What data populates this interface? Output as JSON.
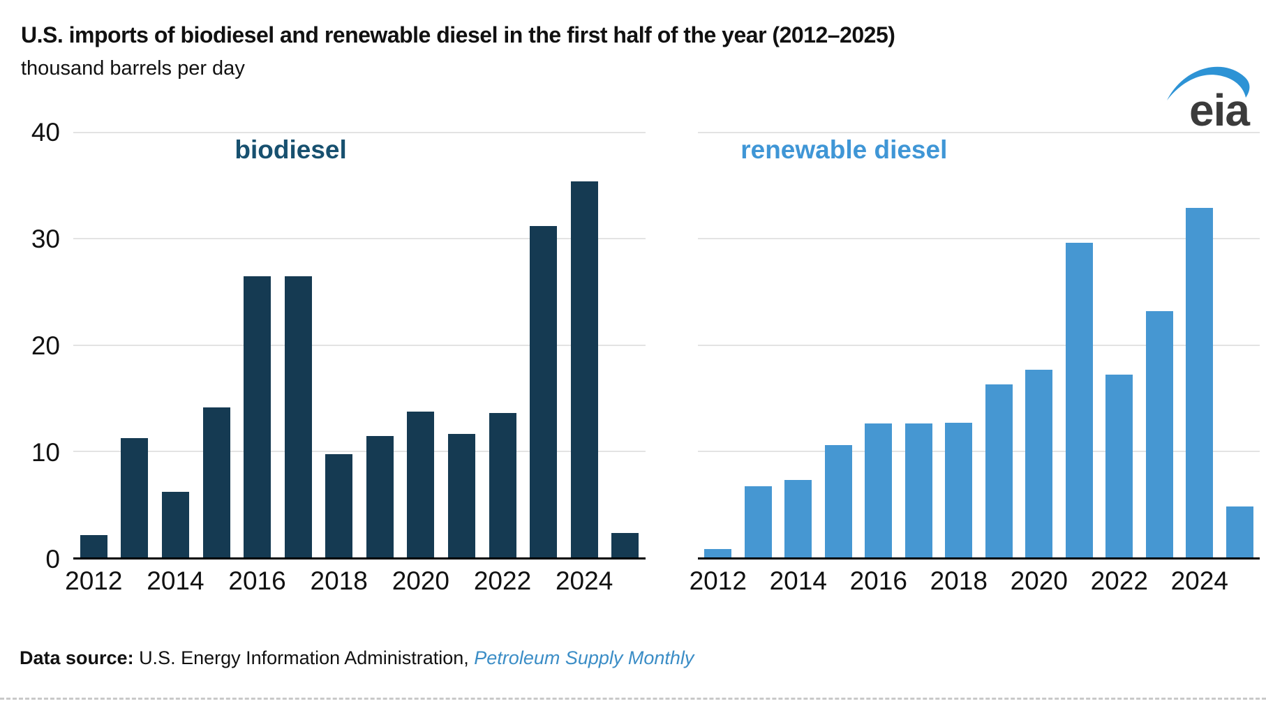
{
  "page": {
    "title": "U.S. imports of biodiesel and renewable diesel in the first half of the year (2012–2025)",
    "subtitle": "thousand barrels per day",
    "logo_text": "eia",
    "source_prefix": "Data source: ",
    "source_body": "U.S. Energy Information Administration, ",
    "source_publication": "Petroleum Supply Monthly"
  },
  "colors": {
    "biodiesel_bar": "#153a52",
    "biodiesel_title": "#17506f",
    "renewable_bar": "#4697d2",
    "renewable_title": "#3f96d6",
    "gridline": "#e3e3e3",
    "axis": "#000000",
    "source_link_blue": "#3b8dc6",
    "logo_swoosh": "#2d93d5",
    "logo_text_color": "#3b3b3b"
  },
  "chart_data": [
    {
      "type": "bar",
      "title": "biodiesel",
      "ylabel": "thousand barrels per day",
      "ylim": [
        0,
        40
      ],
      "grid": true,
      "y_ticks": [
        40,
        30,
        20,
        10,
        0
      ],
      "categories": [
        "2012",
        "2013",
        "2014",
        "2015",
        "2016",
        "2017",
        "2018",
        "2019",
        "2020",
        "2021",
        "2022",
        "2023",
        "2024",
        "2025"
      ],
      "values": [
        2.1,
        11.2,
        6.2,
        14.1,
        26.5,
        26.5,
        9.7,
        11.4,
        13.7,
        11.6,
        13.6,
        31.2,
        35.4,
        2.3
      ],
      "x_tick_labels": [
        "2012",
        "2014",
        "2016",
        "2018",
        "2020",
        "2022",
        "2024"
      ],
      "bar_color": "#153a52"
    },
    {
      "type": "bar",
      "title": "renewable diesel",
      "ylabel": "thousand barrels per day",
      "ylim": [
        0,
        40
      ],
      "grid": true,
      "y_ticks": [
        40,
        30,
        20,
        10,
        0
      ],
      "categories": [
        "2012",
        "2013",
        "2014",
        "2015",
        "2016",
        "2017",
        "2018",
        "2019",
        "2020",
        "2021",
        "2022",
        "2023",
        "2024",
        "2025"
      ],
      "values": [
        0.8,
        6.7,
        7.3,
        10.6,
        12.6,
        12.6,
        12.7,
        16.3,
        17.7,
        29.6,
        17.2,
        23.2,
        32.9,
        4.8
      ],
      "x_tick_labels": [
        "2012",
        "2014",
        "2016",
        "2018",
        "2020",
        "2022",
        "2024"
      ],
      "bar_color": "#4697d2"
    }
  ]
}
